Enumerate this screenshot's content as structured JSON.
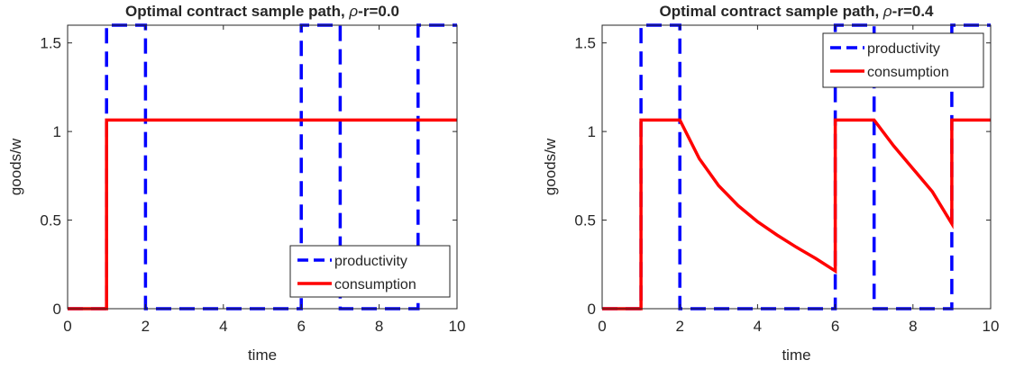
{
  "chart_data": [
    {
      "type": "line",
      "title": "Optimal contract sample path, ρ-r=0.0",
      "title_parts": {
        "prefix": "Optimal contract sample path, ",
        "symbol": "ρ",
        "suffix": "-r=0.0"
      },
      "xlabel": "time",
      "ylabel": "goods/w",
      "xlim": [
        0,
        10
      ],
      "ylim": [
        0,
        1.6
      ],
      "xticks": [
        0,
        2,
        4,
        6,
        8,
        10
      ],
      "xtick_labels": [
        "0",
        "2",
        "4",
        "6",
        "8",
        "10"
      ],
      "yticks": [
        0,
        0.5,
        1,
        1.5
      ],
      "ytick_labels": [
        "0",
        "0.5",
        "1",
        "1.5"
      ],
      "grid": false,
      "legend_position": "bottom-right",
      "series": [
        {
          "name": "productivity",
          "color": "#0000ff",
          "style": "dashed",
          "x": [
            0,
            1,
            1,
            2,
            2,
            6,
            6,
            7,
            7,
            9,
            9,
            10
          ],
          "y": [
            0,
            0,
            1.6,
            1.6,
            0,
            0,
            1.6,
            1.6,
            0,
            0,
            1.6,
            1.6
          ]
        },
        {
          "name": "consumption",
          "color": "#ff0000",
          "style": "solid",
          "x": [
            0,
            1,
            1,
            10
          ],
          "y": [
            0,
            0,
            1.065,
            1.065
          ]
        }
      ]
    },
    {
      "type": "line",
      "title": "Optimal contract sample path, ρ-r=0.4",
      "title_parts": {
        "prefix": "Optimal contract sample path, ",
        "symbol": "ρ",
        "suffix": "-r=0.4"
      },
      "xlabel": "time",
      "ylabel": "goods/w",
      "xlim": [
        0,
        10
      ],
      "ylim": [
        0,
        1.6
      ],
      "xticks": [
        0,
        2,
        4,
        6,
        8,
        10
      ],
      "xtick_labels": [
        "0",
        "2",
        "4",
        "6",
        "8",
        "10"
      ],
      "yticks": [
        0,
        0.5,
        1,
        1.5
      ],
      "ytick_labels": [
        "0",
        "0.5",
        "1",
        "1.5"
      ],
      "grid": false,
      "legend_position": "top-right",
      "series": [
        {
          "name": "productivity",
          "color": "#0000ff",
          "style": "dashed",
          "x": [
            0,
            1,
            1,
            2,
            2,
            6,
            6,
            7,
            7,
            9,
            9,
            10
          ],
          "y": [
            0,
            0,
            1.6,
            1.6,
            0,
            0,
            1.6,
            1.6,
            0,
            0,
            1.6,
            1.6
          ]
        },
        {
          "name": "consumption",
          "color": "#ff0000",
          "style": "solid",
          "x": [
            0,
            1,
            1,
            2,
            2.5,
            3,
            3.5,
            4,
            4.5,
            5,
            5.5,
            6,
            6,
            7,
            7.5,
            8,
            8.5,
            9,
            9,
            10
          ],
          "y": [
            0,
            0,
            1.065,
            1.065,
            0.847,
            0.694,
            0.582,
            0.491,
            0.416,
            0.347,
            0.283,
            0.213,
            1.065,
            1.065,
            0.92,
            0.79,
            0.66,
            0.48,
            1.065,
            1.065
          ]
        }
      ]
    }
  ]
}
